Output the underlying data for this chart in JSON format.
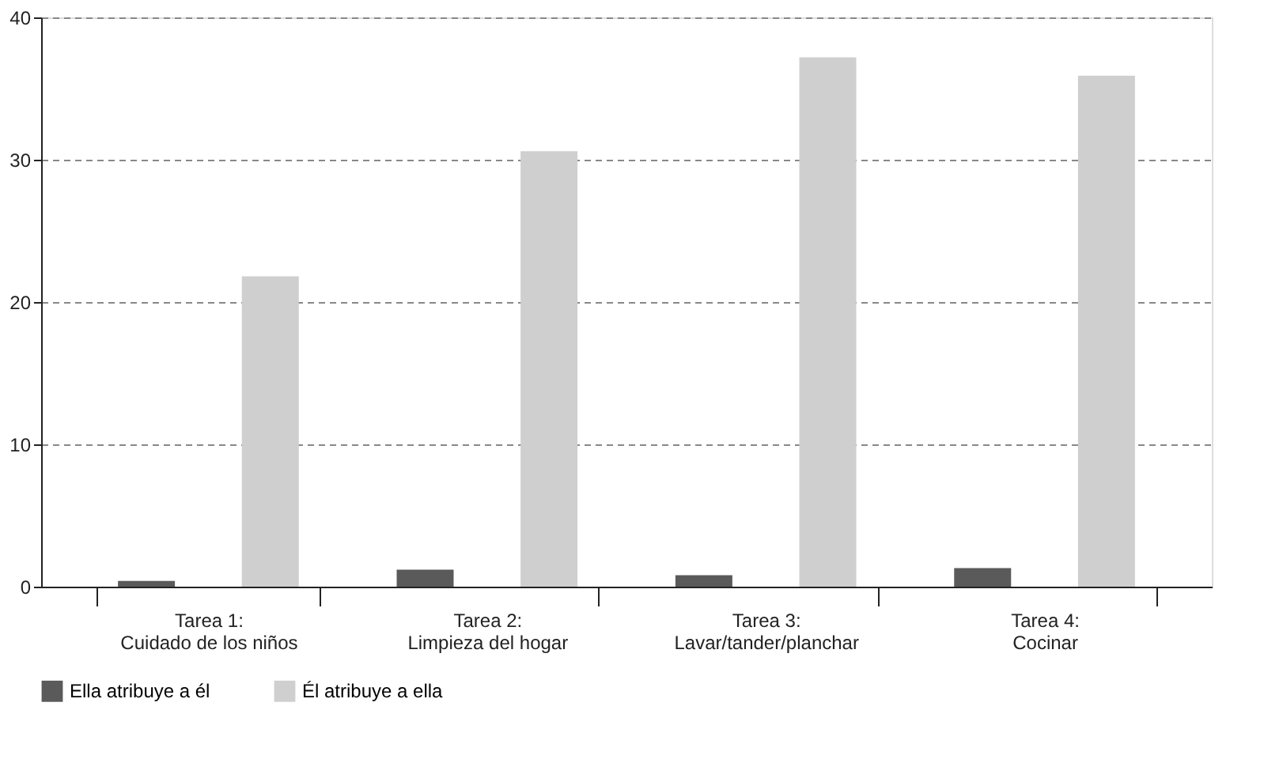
{
  "chart_data": {
    "type": "bar",
    "categories": [
      "Tarea 1:\nCuidado de los niños",
      "Tarea 2:\nLimpieza del hogar",
      "Tarea 3:\nLavar/tander/planchar",
      "Tarea 4:\nCocinar"
    ],
    "series": [
      {
        "name": "Ella atribuye a él",
        "color": "#5a5a5a",
        "values": [
          0.4,
          1.2,
          0.8,
          1.3
        ]
      },
      {
        "name": "Él atribuye a ella",
        "color": "#cfcfcf",
        "values": [
          21.8,
          30.6,
          37.2,
          35.9
        ]
      }
    ],
    "ylim": [
      0,
      40
    ],
    "yticks": [
      0,
      10,
      20,
      30,
      40
    ],
    "grid": "y",
    "legend": "bottom"
  }
}
